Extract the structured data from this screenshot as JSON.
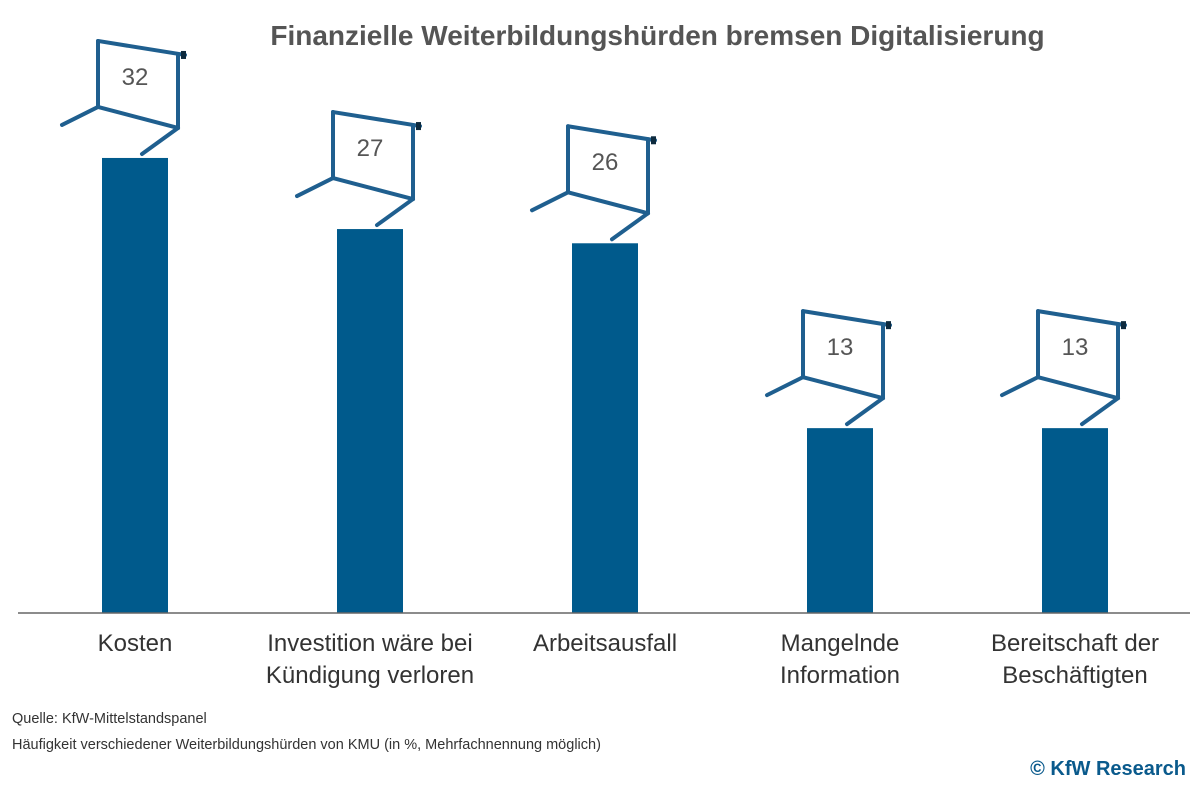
{
  "chart_data": {
    "type": "bar",
    "title": "Finanzielle Weiterbildungshürden bremsen Digitalisierung",
    "categories": [
      "Kosten",
      "Investition wäre bei\nKündigung verloren",
      "Arbeitsausfall",
      "Mangelnde\nInformation",
      "Bereitschaft der\nBeschäftigten"
    ],
    "values": [
      32,
      27,
      26,
      13,
      13
    ],
    "value_labels": [
      "32",
      "27",
      "26",
      "13",
      "13"
    ],
    "xlabel": "",
    "ylabel": "",
    "ylim": [
      0,
      40
    ],
    "grid": false,
    "bar_color": "#005a8c",
    "hurdle_color": "#1f5f8f",
    "axis_color": "#666666"
  },
  "footer": {
    "source": "Quelle: KfW-Mittelstandspanel",
    "note": "Häufigkeit verschiedener Weiterbildungshürden von KMU (in %, Mehrfachnennung möglich)",
    "brand": "© KfW Research"
  },
  "colors": {
    "title": "#555555",
    "brand": "#0a5a8c"
  }
}
